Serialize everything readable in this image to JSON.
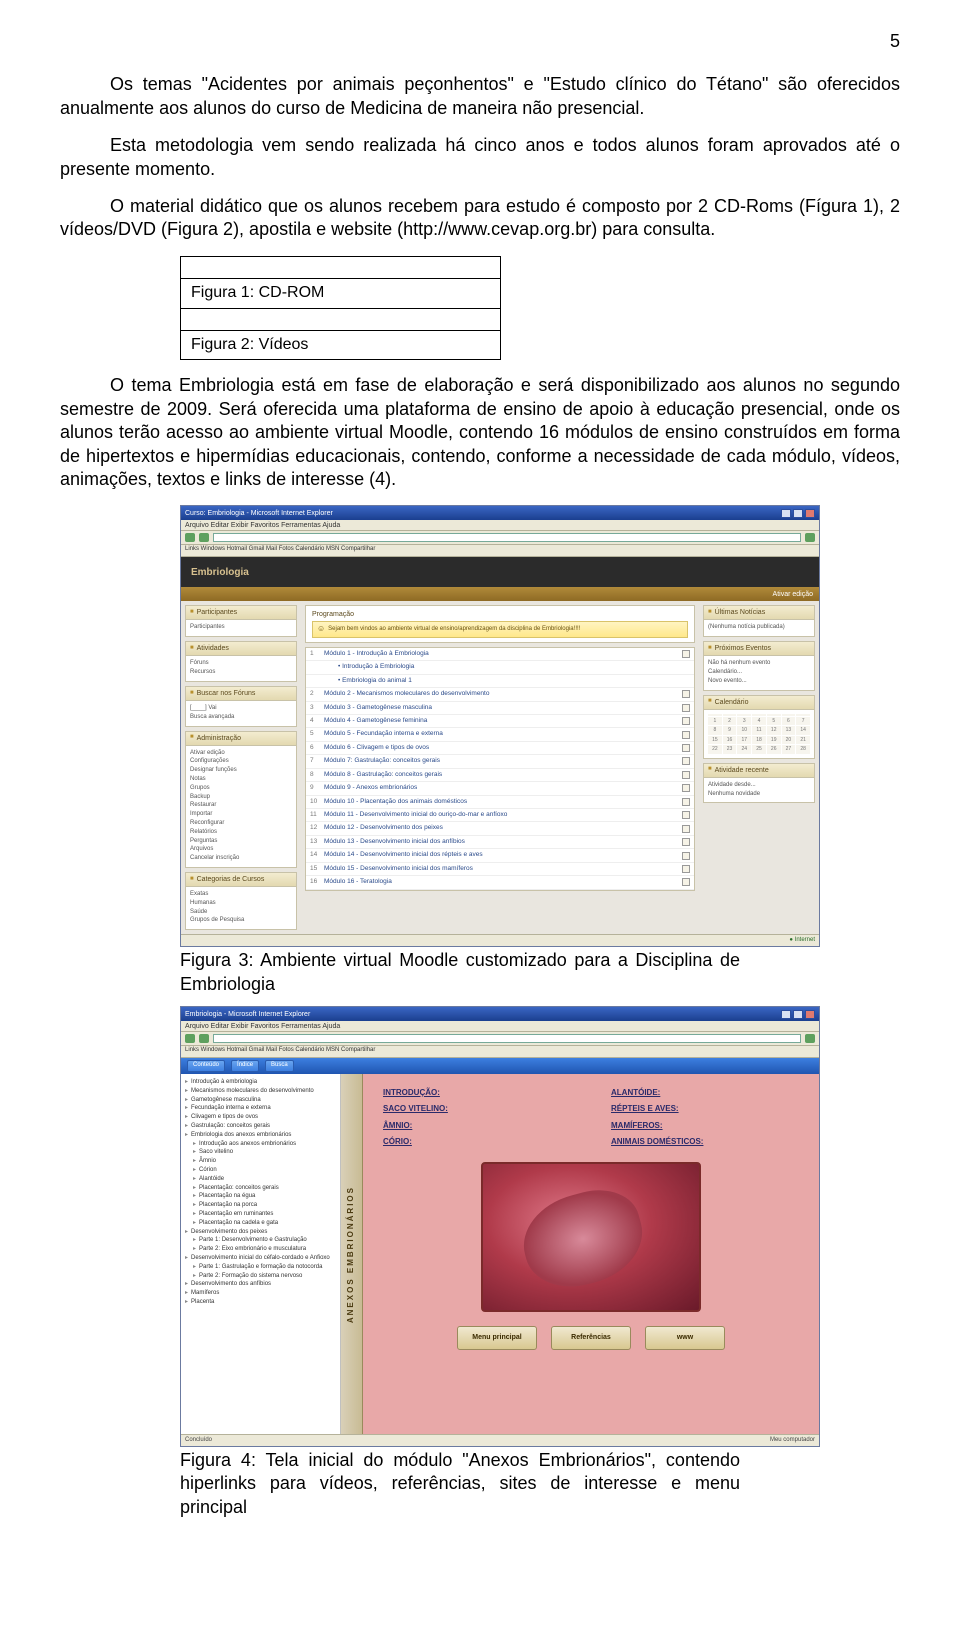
{
  "page_number": "5",
  "para1": "Os temas \"Acidentes por animais peçonhentos\" e \"Estudo clínico do Tétano\" são oferecidos anualmente aos alunos do curso de Medicina de maneira não presencial.",
  "para2": "Esta metodologia vem sendo realizada há cinco anos e todos alunos foram aprovados até o presente momento.",
  "para3": "O material didático que os alunos recebem para estudo é composto por 2 CD-Roms (Fígura 1), 2 vídeos/DVD (Figura 2), apostila e website (http://www.cevap.org.br) para consulta.",
  "fig1": "Figura 1: CD-ROM",
  "fig2": "Figura 2: Vídeos",
  "para4": "O tema Embriologia está em fase de elaboração e será disponibilizado aos alunos no segundo semestre de 2009. Será oferecida uma plataforma de ensino de apoio à educação presencial, onde os alunos terão acesso ao ambiente virtual Moodle, contendo 16 módulos de ensino construídos em forma de hipertextos e hipermídias educacionais, contendo, conforme a necessidade de cada módulo, vídeos, animações, textos e links de interesse (4).",
  "caption3": "Figura 3: Ambiente virtual Moodle customizado para a Disciplina de Embriologia",
  "caption4": "Figura 4: Tela inicial do módulo \"Anexos Embrionários\", contendo hiperlinks para vídeos, referências, sites de interesse e menu principal",
  "moodle": {
    "title": "Curso: Embriologia - Microsoft Internet Explorer",
    "menu": "Arquivo  Editar  Exibir  Favoritos  Ferramentas  Ajuda",
    "links": "Links  Windows  Hotmail  Gmail  Mail  Fotos  Calendário  MSN  Compartilhar",
    "header": "Embriologia",
    "goldbar": "Ativar edição",
    "welcome_head": "Programação",
    "welcome_msg": "Sejam bem vindos ao ambiente virtual de ensino/aprendizagem da disciplina de Embriologia!!!!",
    "left_blocks": [
      {
        "h": "Participantes",
        "items": [
          "Participantes"
        ]
      },
      {
        "h": "Atividades",
        "items": [
          "Fóruns",
          "Recursos"
        ]
      },
      {
        "h": "Buscar nos Fóruns",
        "items": [
          "[____]  Vai",
          "Busca avançada"
        ]
      },
      {
        "h": "Administração",
        "items": [
          "Ativar edição",
          "Configurações",
          "Designar funções",
          "Notas",
          "Grupos",
          "Backup",
          "Restaurar",
          "Importar",
          "Reconfigurar",
          "Relatórios",
          "Perguntas",
          "Arquivos",
          "Cancelar inscrição"
        ]
      },
      {
        "h": "Categorias de Cursos",
        "items": [
          "Exatas",
          "Humanas",
          "Saúde",
          "Grupos de Pesquisa"
        ]
      }
    ],
    "right_blocks": [
      {
        "h": "Últimas Notícias",
        "items": [
          "(Nenhuma notícia publicada)"
        ]
      },
      {
        "h": "Próximos Eventos",
        "items": [
          "Não há nenhum evento",
          "Calendário...",
          "Novo evento..."
        ]
      },
      {
        "h": "Calendário",
        "items": []
      },
      {
        "h": "Atividade recente",
        "items": [
          "Atividade desde...",
          "Nenhuma novidade"
        ]
      }
    ],
    "modules": [
      "Módulo 1 - Introdução à Embriologia",
      "  • Introdução à Embriologia",
      "  • Embriologia do animal 1",
      "Módulo 2 - Mecanismos moleculares do desenvolvimento",
      "Módulo 3 - Gametogênese masculina",
      "Módulo 4 - Gametogênese feminina",
      "Módulo 5 - Fecundação interna e externa",
      "Módulo 6 - Clivagem e tipos de ovos",
      "Módulo 7: Gastrulação: conceitos gerais",
      "Módulo 8 - Gastrulação: conceitos gerais",
      "Módulo 9 - Anexos embrionários",
      "Módulo 10 - Placentação dos animais domésticos",
      "Módulo 11 - Desenvolvimento inicial do ouriço-do-mar e anfíoxo",
      "Módulo 12 - Desenvolvimento dos peixes",
      "Módulo 13 - Desenvolvimento inicial dos anfíbios",
      "Módulo 14 - Desenvolvimento inicial dos répteis e aves",
      "Módulo 15 - Desenvolvimento inicial dos mamíferos",
      "Módulo 16 - Teratologia"
    ]
  },
  "anexos": {
    "title": "Embriologia - Microsoft Internet Explorer",
    "menu": "Arquivo  Editar  Exibir  Favoritos  Ferramentas  Ajuda",
    "links": "Links  Windows  Hotmail  Gmail  Mail  Fotos  Calendário  MSN  Compartilhar",
    "bluebtns": [
      "Conteúdo",
      "Índice",
      "Busca"
    ],
    "vlabel": "ANEXOS EMBRIONÁRIOS",
    "tree": [
      {
        "t": "Introdução à embriologia",
        "i": 0
      },
      {
        "t": "Mecanismos moleculares do desenvolvimento",
        "i": 0
      },
      {
        "t": "Gametogênese masculina",
        "i": 0
      },
      {
        "t": "Fecundação interna e externa",
        "i": 0
      },
      {
        "t": "Clivagem e tipos de ovos",
        "i": 0
      },
      {
        "t": "Gastrulação: conceitos gerais",
        "i": 0
      },
      {
        "t": "Embriologia dos anexos embrionários",
        "i": 0
      },
      {
        "t": "Introdução aos anexos embrionários",
        "i": 1
      },
      {
        "t": "Saco vitelino",
        "i": 1
      },
      {
        "t": "Âmnio",
        "i": 1
      },
      {
        "t": "Córion",
        "i": 1
      },
      {
        "t": "Alantóide",
        "i": 1
      },
      {
        "t": "Placentação: conceitos gerais",
        "i": 1
      },
      {
        "t": "Placentação na égua",
        "i": 1
      },
      {
        "t": "Placentação na porca",
        "i": 1
      },
      {
        "t": "Placentação em ruminantes",
        "i": 1
      },
      {
        "t": "Placentação na cadela e gata",
        "i": 1
      },
      {
        "t": "Desenvolvimento dos peixes",
        "i": 0
      },
      {
        "t": "Parte 1: Desenvolvimento e Gastrulação",
        "i": 1
      },
      {
        "t": "Parte 2: Eixo embrionário e musculatura",
        "i": 1
      },
      {
        "t": "Desenvolvimento inicial do céfalo-cordado e Anfioxo",
        "i": 0
      },
      {
        "t": "Parte 1: Gastrulação e formação da notocorda",
        "i": 1
      },
      {
        "t": "Parte 2: Formação do sistema nervoso",
        "i": 1
      },
      {
        "t": "Desenvolvimento dos anfíbios",
        "i": 0
      },
      {
        "t": "Mamíferos",
        "i": 0
      },
      {
        "t": "Placenta",
        "i": 0
      }
    ],
    "links_grid": [
      "INTRODUÇÃO:",
      "ALANTÓIDE:",
      "SACO VITELINO:",
      "RÉPTEIS E AVES:",
      "ÂMNIO:",
      "MAMÍFEROS:",
      "CÓRIO:",
      "ANIMAIS DOMÉSTICOS:"
    ],
    "bottom_btns": [
      "Menu principal",
      "Referências",
      "www"
    ],
    "status_left": "Concluído",
    "status_right": "Meu computador"
  }
}
